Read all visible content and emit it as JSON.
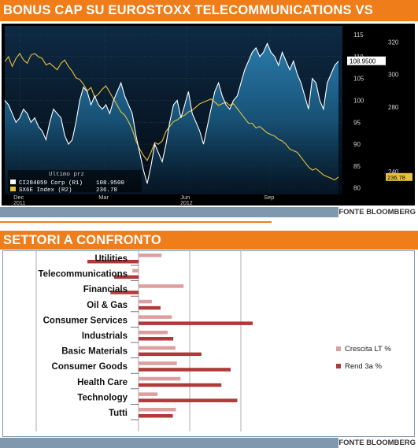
{
  "banner1": "BONUS CAP SU EUROSTOXX TELECOMMUNICATIONS VS INDICE",
  "banner2": "SETTORI A CONFRONTO",
  "source1": "FONTE BLOOMBERG",
  "source2": "FONTE BLOOMBERG",
  "colors": {
    "banner": "#ee7d1a",
    "sourcebar": "#7f98ad",
    "bonus_line": "#ffffff",
    "index_line": "#e8c23a",
    "crescita": "#dc9e9e",
    "rend": "#b03a3a"
  },
  "chart_data": [
    {
      "type": "line",
      "title": "",
      "legend_header": "Ultimo prz",
      "x_tick_labels": [
        {
          "label": "Dec",
          "sub": "2011"
        },
        {
          "label": "Mar",
          "sub": ""
        },
        {
          "label": "Jun",
          "sub": "2012"
        },
        {
          "label": "Sep",
          "sub": ""
        }
      ],
      "y_left_ticks": [
        80,
        85,
        90,
        95,
        100,
        105,
        110,
        115
      ],
      "y_left_range": [
        78.5,
        117
      ],
      "y_right_ticks": [
        240,
        280,
        300,
        320
      ],
      "y_right_range": [
        226,
        330
      ],
      "series": [
        {
          "name": "CI284059 Corp (R1)",
          "last_value": "108.9500",
          "axis": "left",
          "values": [
            100,
            99,
            97,
            95,
            96,
            98,
            97,
            95,
            96,
            94,
            93,
            91,
            95,
            98,
            97,
            96,
            92,
            90,
            91,
            95,
            100,
            103,
            102,
            99,
            101,
            99,
            98,
            99,
            97,
            100,
            102,
            104,
            101,
            99,
            97,
            92,
            88,
            84,
            81,
            85,
            90,
            88,
            86,
            90,
            95,
            99,
            100,
            96,
            99,
            102,
            97,
            95,
            93,
            90,
            94,
            98,
            102,
            104,
            101,
            99,
            98,
            100,
            101,
            104,
            107,
            109,
            111,
            112,
            110,
            111,
            113,
            111,
            110,
            108,
            111,
            109,
            107,
            109,
            106,
            104,
            101,
            98,
            105,
            104,
            100,
            98,
            104,
            106,
            108,
            108.95
          ]
        },
        {
          "name": "SX6E Index (R2)",
          "last_value": "236.78",
          "axis": "right",
          "values": [
            308,
            311,
            305,
            310,
            313,
            309,
            307,
            312,
            313,
            311,
            310,
            306,
            307,
            305,
            303,
            307,
            309,
            305,
            302,
            298,
            297,
            294,
            290,
            292,
            286,
            288,
            291,
            293,
            289,
            285,
            281,
            277,
            275,
            271,
            266,
            259,
            254,
            250,
            247,
            252,
            258,
            257,
            259,
            265,
            268,
            271,
            272,
            274,
            275,
            277,
            278,
            280,
            282,
            283,
            284,
            285,
            283,
            281,
            282,
            283,
            281,
            282,
            279,
            276,
            273,
            270,
            270,
            267,
            268,
            266,
            264,
            263,
            262,
            260,
            259,
            257,
            254,
            253,
            252,
            249,
            246,
            243,
            241,
            242,
            240,
            238,
            237,
            236,
            235,
            236.78
          ]
        }
      ]
    },
    {
      "type": "bar",
      "title": "",
      "categories": [
        "Utilities",
        "Telecommunications",
        "Financials",
        "Oil & Gas",
        "Consumer Services",
        "Industrials",
        "Basic Materials",
        "Consumer Goods",
        "Health Care",
        "Technology",
        "Tutti"
      ],
      "series": [
        {
          "name": "Crescita LT %",
          "values": [
            4.5,
            -1.2,
            8.8,
            2.6,
            6.5,
            5.7,
            7.2,
            7.5,
            8.2,
            3.7,
            7.3
          ]
        },
        {
          "name": "Rend 3a %",
          "values": [
            -10.0,
            -4.8,
            -5.5,
            4.3,
            22.3,
            6.8,
            12.3,
            18.0,
            16.2,
            19.3,
            6.7
          ]
        }
      ],
      "xlim": [
        -25,
        25
      ],
      "grid": true,
      "legend_position": "right"
    }
  ]
}
